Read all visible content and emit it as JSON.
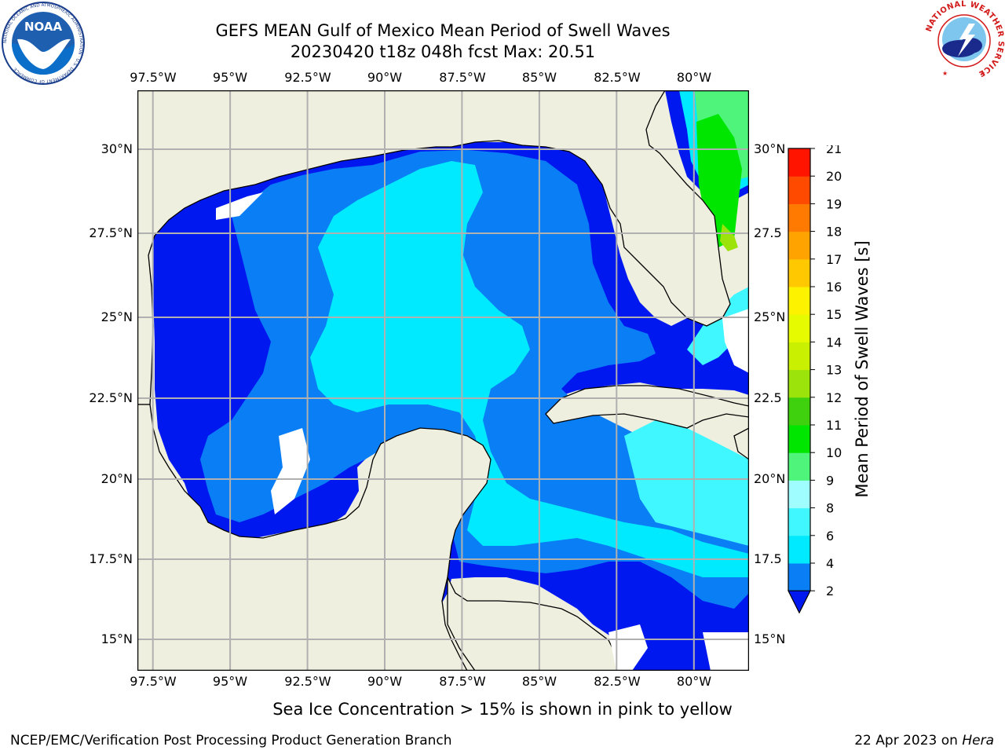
{
  "title": {
    "line1": "GEFS MEAN Gulf of Mexico Mean Period of Swell Waves",
    "line2": "20230420 t18z 048h fcst   Max: 20.51"
  },
  "map": {
    "lon_ticks": [
      "97.5°W",
      "95°W",
      "92.5°W",
      "90°W",
      "87.5°W",
      "85°W",
      "82.5°W",
      "80°W"
    ],
    "lat_ticks_left": [
      "30°N",
      "27.5°N",
      "25°N",
      "22.5°N",
      "20°N",
      "17.5°N",
      "15°N"
    ],
    "lat_ticks_right": [
      "30°N",
      "27.5",
      "25°N",
      "22.5",
      "20°N",
      "17.5",
      "15°N"
    ],
    "land_color": "#efefdf",
    "grid_color": "#b0b0b0"
  },
  "colorbar": {
    "label": "Mean Period of Swell Waves [s]",
    "ticks": [
      "2",
      "4",
      "6",
      "8",
      "9",
      "10",
      "11",
      "12",
      "13",
      "14",
      "15",
      "16",
      "17",
      "18",
      "19",
      "20",
      "21"
    ],
    "colors": [
      "#0a7ef5",
      "#00eaff",
      "#40f7ff",
      "#9ffcff",
      "#4ef57a",
      "#00e600",
      "#3fd10d",
      "#9be30a",
      "#c8f000",
      "#e6fa00",
      "#fdf200",
      "#ffc800",
      "#ffa300",
      "#ff7a00",
      "#ff4a00",
      "#ff1400"
    ],
    "under_color": "#0018f0"
  },
  "footer": {
    "note": "Sea Ice Concentration > 15% is shown in pink to yellow",
    "credit": "NCEP/EMC/Verification Post Processing Product Generation Branch",
    "date": "22 Apr 2023 on ",
    "machine": "Hera"
  },
  "logos": {
    "noaa_text": "NOAA",
    "noaa_ring_text": "NATIONAL OCEANIC AND ATMOSPHERIC ADMINISTRATION · U.S. DEPARTMENT OF COMMERCE",
    "nws_ring_text": "NATIONAL WEATHER SERVICE"
  }
}
